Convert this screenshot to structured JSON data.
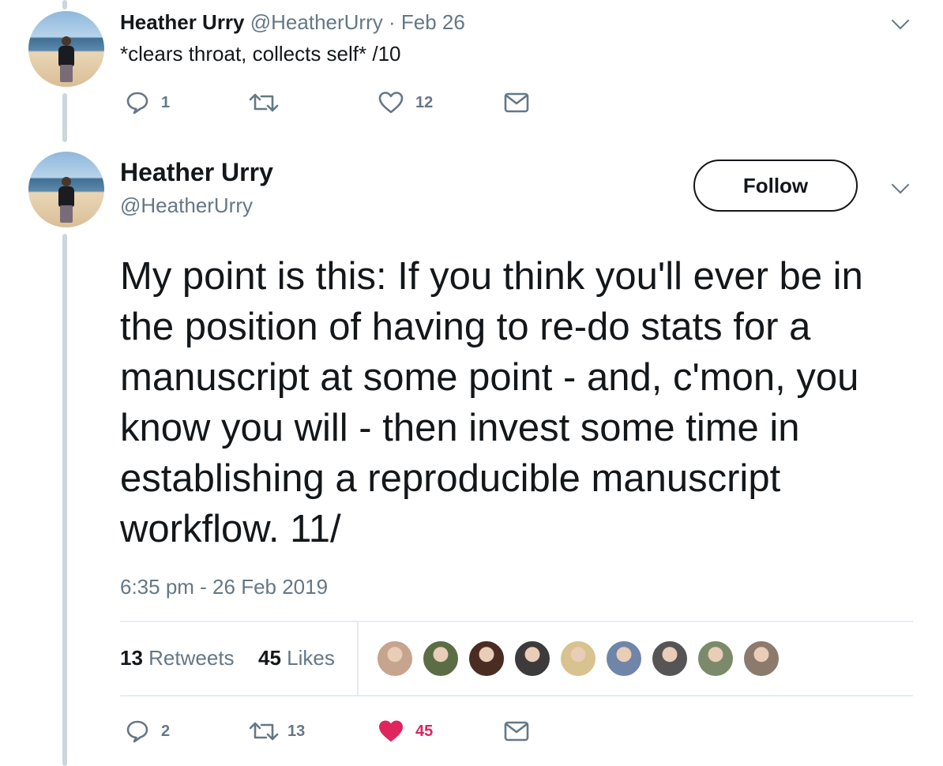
{
  "tweet1": {
    "name": "Heather Urry",
    "handle": "@HeatherUrry",
    "date": "· Feb 26",
    "text": "*clears throat, collects self* /10",
    "replies": "1",
    "retweets": "",
    "likes": "12"
  },
  "tweet2": {
    "name": "Heather Urry",
    "handle": "@HeatherUrry",
    "follow_label": "Follow",
    "text": "My point is this: If you think you'll ever be in the position of having to re-do stats for a manuscript at some point - and, c'mon, you know you will - then invest some time in establishing a reproducible manuscript workflow. 11/",
    "timestamp": "6:35 pm - 26 Feb 2019",
    "retweet_count": "13",
    "retweet_label": "Retweets",
    "like_count": "45",
    "like_label": "Likes",
    "replies": "2",
    "retweets": "13",
    "likes": "45"
  },
  "likers": [
    {
      "name": "liker-1",
      "color": "#c7a48e"
    },
    {
      "name": "liker-2",
      "color": "#5b6d45"
    },
    {
      "name": "liker-3",
      "color": "#4a2c22"
    },
    {
      "name": "liker-4",
      "color": "#3c3a3a"
    },
    {
      "name": "liker-5",
      "color": "#d8c28f"
    },
    {
      "name": "liker-6",
      "color": "#6f86a8"
    },
    {
      "name": "liker-7",
      "color": "#555555"
    },
    {
      "name": "liker-8",
      "color": "#7b8a6a"
    },
    {
      "name": "liker-9",
      "color": "#8c7a6c"
    }
  ],
  "colors": {
    "muted": "#657786",
    "like_red": "#e0245e",
    "thread_line": "#ccd6dd"
  },
  "icons": {
    "reply": "reply-icon",
    "retweet": "retweet-icon",
    "like": "heart-icon",
    "message": "envelope-icon",
    "more": "chevron-down-icon"
  }
}
